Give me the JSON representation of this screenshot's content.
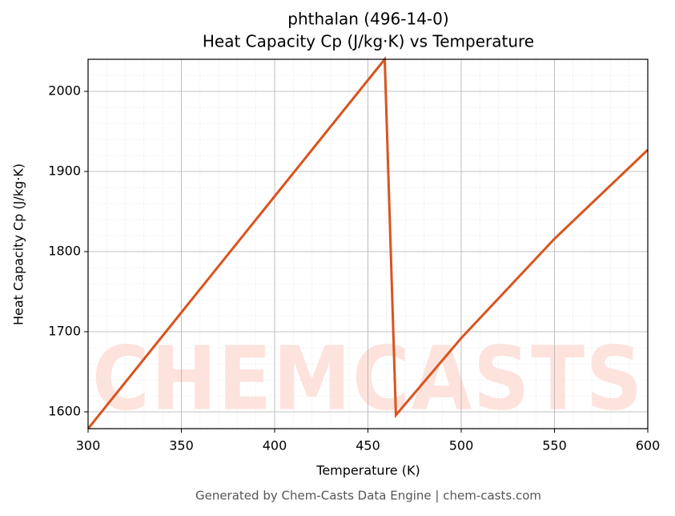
{
  "chart_data": {
    "type": "line",
    "title": "phthalan (496-14-0)",
    "subtitle": "Heat Capacity Cp (J/kg·K) vs Temperature",
    "xlabel": "Temperature (K)",
    "ylabel": "Heat Capacity Cp (J/kg·K)",
    "footer": "Generated by Chem-Casts Data Engine | chem-casts.com",
    "watermark": "CHEMCASTS",
    "x": [
      300,
      350,
      400,
      450,
      459,
      465,
      500,
      550,
      600
    ],
    "series": [
      {
        "name": "Cp",
        "color": "#d9541e",
        "values": [
          1579,
          1724,
          1869,
          2014,
          2040,
          1596,
          1692,
          1816,
          1927
        ]
      }
    ],
    "xlim": [
      300,
      600
    ],
    "xticks": [
      300,
      350,
      400,
      450,
      500,
      550,
      600
    ],
    "ylim": [
      1579,
      2040
    ],
    "yticks": [
      1600,
      1700,
      1800,
      1900,
      2000
    ],
    "grid": true,
    "minor_grid": true
  }
}
